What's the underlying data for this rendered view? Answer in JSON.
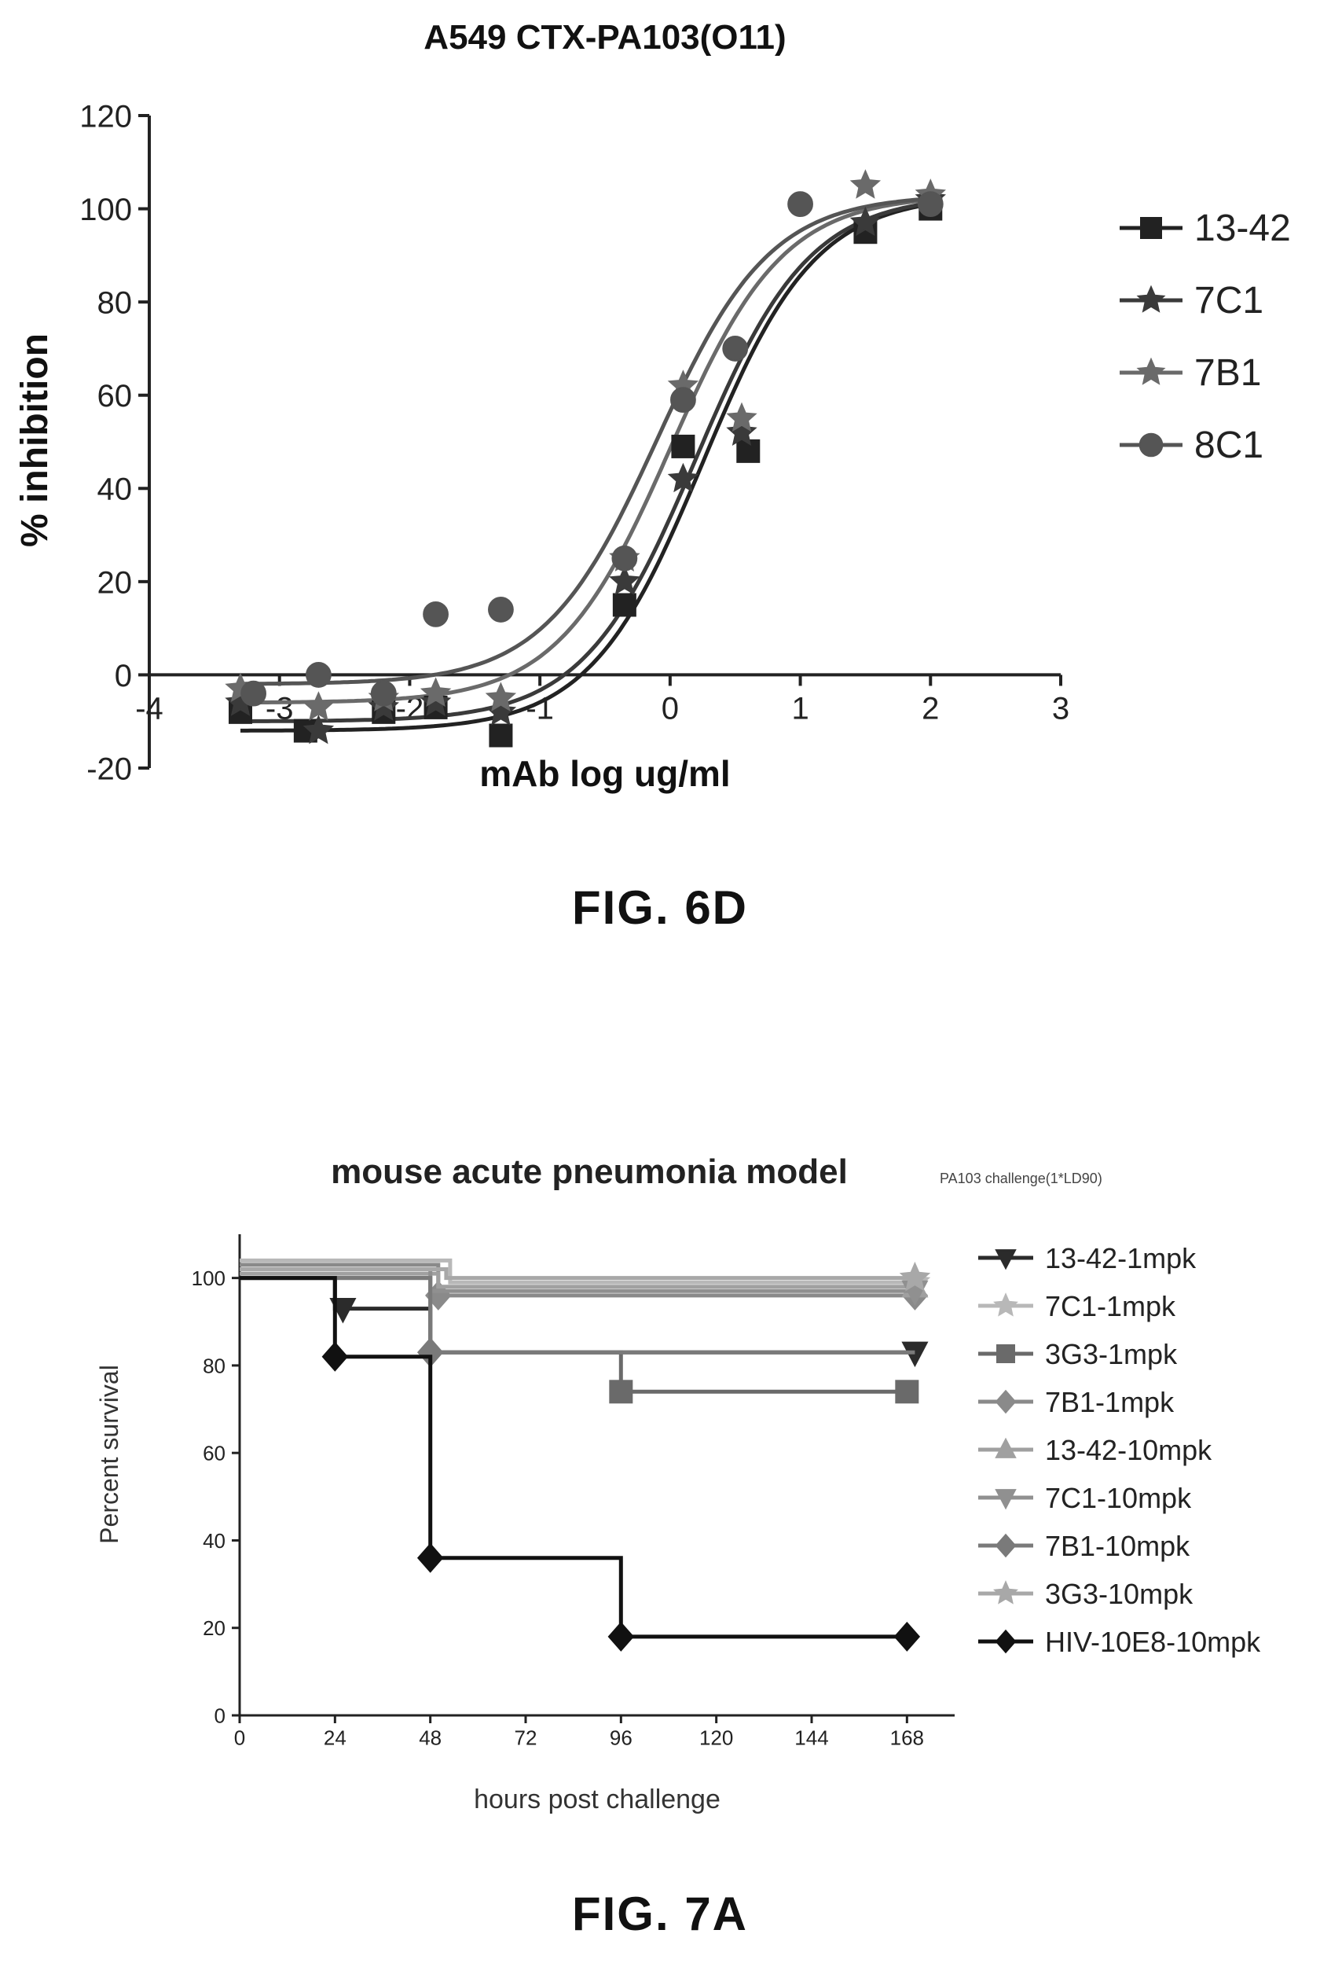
{
  "figures": [
    {
      "label": "FIG. 6D"
    },
    {
      "label": "FIG. 7A"
    }
  ],
  "chart_data": [
    {
      "type": "scatter",
      "title": "A549 CTX-PA103(O11)",
      "xlabel": "mAb log ug/ml",
      "ylabel": "% inhibition",
      "xlim": [
        -4,
        3
      ],
      "ylim": [
        -20,
        120
      ],
      "xticks": [
        -4,
        -3,
        -2,
        -1,
        0,
        1,
        2,
        3
      ],
      "yticks": [
        -20,
        0,
        20,
        40,
        60,
        80,
        100,
        120
      ],
      "xtick_labels": [
        "-4",
        "-3",
        "-2",
        "-1",
        "0",
        "1",
        "2",
        "3"
      ],
      "ytick_labels": [
        "-20",
        "0",
        "20",
        "40",
        "60",
        "80",
        "100",
        "120"
      ],
      "grid": false,
      "legend_position": "right",
      "series": [
        {
          "name": "13-42",
          "marker": "square",
          "color": "#222222",
          "x": [
            -3.3,
            -2.8,
            -2.2,
            -1.8,
            -1.3,
            -0.35,
            0.1,
            0.6,
            1.5,
            2.0
          ],
          "y": [
            -8,
            -12,
            -8,
            -7,
            -13,
            15,
            49,
            48,
            95,
            100
          ],
          "curve": {
            "bottom": -12,
            "top": 103,
            "logEC50": 0.25,
            "hill": 1.0
          }
        },
        {
          "name": "7C1",
          "marker": "star",
          "color": "#3a3a3a",
          "x": [
            -3.3,
            -2.7,
            -2.2,
            -1.8,
            -1.3,
            -0.35,
            0.1,
            0.55,
            1.5,
            2.0
          ],
          "y": [
            -6,
            -12,
            -7,
            -6,
            -8,
            20,
            42,
            52,
            97,
            102
          ],
          "curve": {
            "bottom": -10,
            "top": 103,
            "logEC50": 0.2,
            "hill": 1.0
          }
        },
        {
          "name": "7B1",
          "marker": "triangle-star",
          "color": "#6a6a6a",
          "x": [
            -3.3,
            -2.7,
            -2.2,
            -1.8,
            -1.3,
            -0.35,
            0.1,
            0.55,
            1.5,
            2.0
          ],
          "y": [
            -3,
            -7,
            -5,
            -4,
            -5,
            25,
            62,
            55,
            105,
            103
          ],
          "curve": {
            "bottom": -6,
            "top": 103,
            "logEC50": 0.0,
            "hill": 1.0
          }
        },
        {
          "name": "8C1",
          "marker": "circle",
          "color": "#555555",
          "x": [
            -3.2,
            -2.7,
            -2.2,
            -1.8,
            -1.3,
            -0.35,
            0.1,
            0.5,
            1.0,
            2.0
          ],
          "y": [
            -4,
            0,
            -4,
            13,
            14,
            25,
            59,
            70,
            101,
            101
          ],
          "curve": {
            "bottom": -2,
            "top": 103,
            "logEC50": -0.1,
            "hill": 1.0
          }
        }
      ]
    },
    {
      "type": "line",
      "title": "mouse acute pneumonia model",
      "subtitle": "PA103 challenge(1*LD90)",
      "xlabel": "hours post challenge",
      "ylabel": "Percent survival",
      "xlim": [
        0,
        180
      ],
      "ylim": [
        0,
        110
      ],
      "xticks": [
        0,
        24,
        48,
        72,
        96,
        120,
        144,
        168
      ],
      "yticks": [
        0,
        20,
        40,
        60,
        80,
        100
      ],
      "xtick_labels": [
        "0",
        "24",
        "48",
        "72",
        "96",
        "120",
        "144",
        "168"
      ],
      "ytick_labels": [
        "0",
        "20",
        "40",
        "60",
        "80",
        "100"
      ],
      "grid": false,
      "legend_position": "right",
      "series": [
        {
          "name": "13-42-1mpk",
          "marker": "triangle-down",
          "color": "#2b2b2b",
          "steps": [
            [
              0,
              100
            ],
            [
              24,
              100
            ],
            [
              24,
              93
            ],
            [
              48,
              93
            ],
            [
              48,
              83
            ],
            [
              170,
              83
            ]
          ],
          "markers": [
            [
              26,
              93
            ],
            [
              170,
              83
            ]
          ]
        },
        {
          "name": "7C1-1mpk",
          "marker": "star",
          "color": "#b8b8b8",
          "steps": [
            [
              0,
              104
            ],
            [
              53,
              104
            ],
            [
              53,
              99
            ],
            [
              170,
              99
            ]
          ],
          "markers": [
            [
              170,
              99
            ]
          ]
        },
        {
          "name": "3G3-1mpk",
          "marker": "square",
          "color": "#6a6a6a",
          "steps": [
            [
              0,
              100
            ],
            [
              48,
              100
            ],
            [
              48,
              83
            ],
            [
              96,
              83
            ],
            [
              96,
              74
            ],
            [
              168,
              74
            ]
          ],
          "markers": [
            [
              96,
              74
            ],
            [
              168,
              74
            ]
          ]
        },
        {
          "name": "7B1-1mpk",
          "marker": "diamond",
          "color": "#8a8a8a",
          "steps": [
            [
              0,
              103
            ],
            [
              50,
              103
            ],
            [
              50,
              96
            ],
            [
              170,
              96
            ]
          ],
          "markers": [
            [
              50,
              96
            ],
            [
              170,
              96
            ]
          ]
        },
        {
          "name": "13-42-10mpk",
          "marker": "triangle",
          "color": "#a0a0a0",
          "steps": [
            [
              0,
              101
            ],
            [
              50,
              101
            ],
            [
              50,
              98
            ],
            [
              170,
              98
            ]
          ],
          "markers": [
            [
              170,
              98
            ]
          ]
        },
        {
          "name": "7C1-10mpk",
          "marker": "triangle-down",
          "color": "#909090",
          "steps": [
            [
              0,
              102
            ],
            [
              48,
              102
            ],
            [
              48,
              97
            ],
            [
              170,
              97
            ]
          ],
          "markers": [
            [
              170,
              97
            ]
          ]
        },
        {
          "name": "7B1-10mpk",
          "marker": "diamond",
          "color": "#7a7a7a",
          "steps": [
            [
              0,
              100
            ],
            [
              48,
              100
            ],
            [
              48,
              83
            ],
            [
              170,
              83
            ]
          ],
          "markers": [
            [
              48,
              83
            ]
          ]
        },
        {
          "name": "3G3-10mpk",
          "marker": "star",
          "color": "#a8a8a8",
          "steps": [
            [
              0,
              102
            ],
            [
              52,
              102
            ],
            [
              52,
              100
            ],
            [
              170,
              100
            ]
          ],
          "markers": [
            [
              170,
              100
            ]
          ]
        },
        {
          "name": "HIV-10E8-10mpk",
          "marker": "diamond",
          "color": "#111111",
          "steps": [
            [
              0,
              100
            ],
            [
              24,
              100
            ],
            [
              24,
              82
            ],
            [
              48,
              82
            ],
            [
              48,
              36
            ],
            [
              96,
              36
            ],
            [
              96,
              18
            ],
            [
              168,
              18
            ]
          ],
          "markers": [
            [
              24,
              82
            ],
            [
              48,
              36
            ],
            [
              96,
              18
            ],
            [
              168,
              18
            ]
          ]
        }
      ]
    }
  ]
}
